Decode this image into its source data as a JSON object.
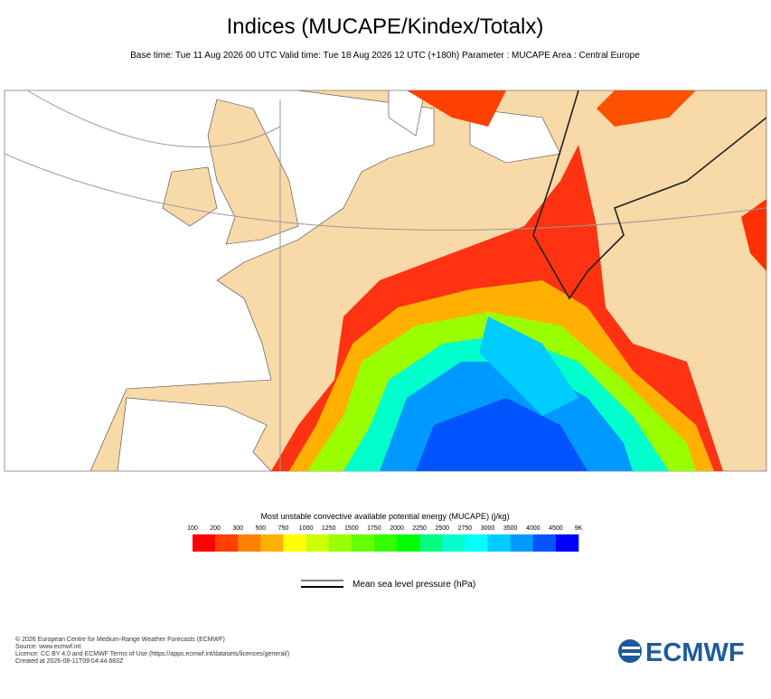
{
  "header": {
    "title": "Indices (MUCAPE/Kindex/Totalx)",
    "subtitle": "Base time: Tue 11 Aug 2026 00 UTC Valid time: Tue 18 Aug 2026 12 UTC (+180h) Parameter : MUCAPE Area : Central Europe"
  },
  "colorbar": {
    "title": "Most unstable convective available potential energy (MUCAPE) (j/kg)",
    "ticks": [
      100,
      200,
      300,
      500,
      750,
      1000,
      1250,
      1500,
      1750,
      2000,
      2250,
      2500,
      2750,
      3000,
      3500,
      4000,
      4500,
      {
        "value": 9000,
        "label": "9K"
      }
    ],
    "colors": [
      "#ff0000",
      "#ff4000",
      "#ff8000",
      "#ffb000",
      "#ffff00",
      "#ccff00",
      "#99ff00",
      "#66ff00",
      "#33ff00",
      "#00ff00",
      "#00ff80",
      "#00ffcc",
      "#00ffff",
      "#00ccff",
      "#0099ff",
      "#0055ff",
      "#0000ff"
    ]
  },
  "line_legend": {
    "label": "Mean sea level pressure (hPa)"
  },
  "footer": {
    "lines": [
      "© 2026 European Centre for Medium-Range Weather Forecasts (ECMWF)",
      "Source: www.ecmwf.int",
      "Licence: CC BY 4.0 and ECMWF Terms of Use (https://apps.ecmwf.int/datasets/licences/general/)",
      "Created at 2026-08-11T09:04:44.683Z"
    ],
    "logo": "ECMWF"
  }
}
